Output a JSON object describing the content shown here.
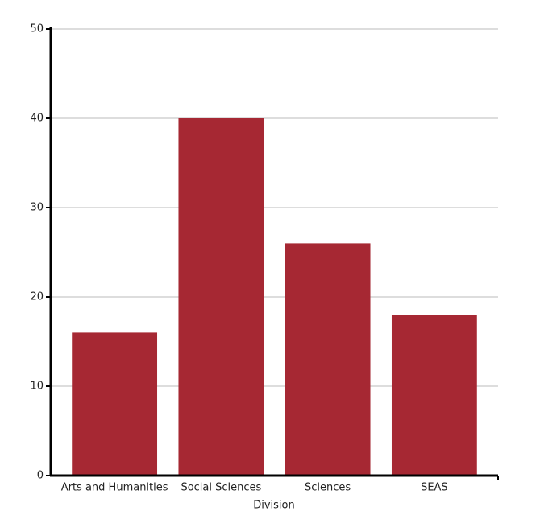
{
  "chart_data": {
    "type": "bar",
    "x_label": "Division",
    "categories": [
      "Arts and Humanities",
      "Social Sciences",
      "Sciences",
      "SEAS"
    ],
    "values": [
      16,
      40,
      26,
      18
    ],
    "color": "#a62833",
    "ylim": [
      0,
      50
    ],
    "yticks": [
      0,
      10,
      20,
      30,
      40,
      50
    ],
    "grid": true
  }
}
